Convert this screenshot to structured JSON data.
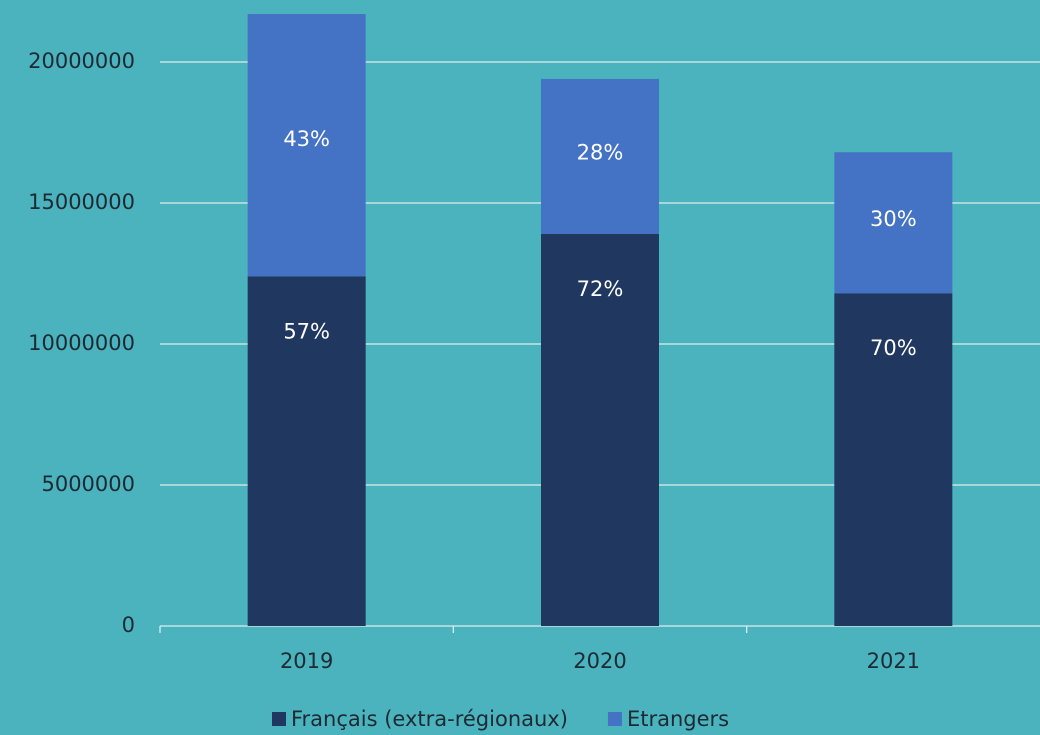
{
  "chart_data": {
    "type": "stacked_bar",
    "categories": [
      "2019",
      "2020",
      "2021"
    ],
    "series": [
      {
        "name": "Français (extra-régionaux)",
        "color": "#20375f",
        "values": [
          12400000,
          13900000,
          11800000
        ],
        "share_labels": [
          "57%",
          "72%",
          "70%"
        ]
      },
      {
        "name": "Etrangers",
        "color": "#4472c4",
        "values": [
          9300000,
          5500000,
          5000000
        ],
        "share_labels": [
          "43%",
          "28%",
          "30%"
        ]
      }
    ],
    "ylim": [
      0,
      22000000
    ],
    "yticks": [
      0,
      5000000,
      10000000,
      15000000,
      20000000
    ],
    "grid": true,
    "legend": "bottom"
  }
}
